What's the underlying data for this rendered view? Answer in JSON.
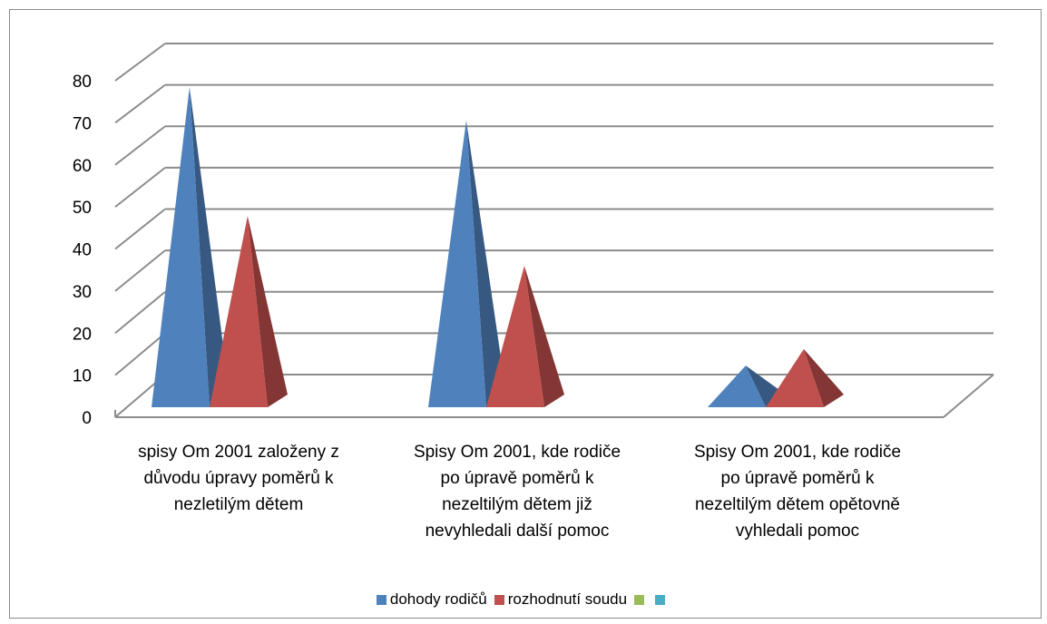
{
  "chart_data": {
    "type": "bar",
    "style": "3d-pyramid",
    "categories": [
      "spisy Om 2001 založeny z\ndůvodu úpravy poměrů k\nnezletilým dětem",
      "Spisy Om 2001, kde rodiče\npo úpravě poměrů k\nnezeltilým dětem již\nnevyhledali další pomoc",
      "Spisy Om  2001, kde rodiče\npo úpravě poměrů k\nnezeltilým dětem opětovně\nvyhledali pomoc"
    ],
    "series": [
      {
        "name": "dohody rodičů",
        "color": "#4f81bd",
        "values": [
          77,
          69,
          10
        ]
      },
      {
        "name": "rozhodnutí soudu",
        "color": "#c0504d",
        "values": [
          46,
          34,
          14
        ]
      },
      {
        "name": "",
        "color": "#9bbb59",
        "values": [
          0,
          0,
          0
        ]
      },
      {
        "name": "",
        "color": "#4bacc6",
        "values": [
          0,
          0,
          0
        ]
      }
    ],
    "y_ticks": [
      "0",
      "10",
      "20",
      "30",
      "40",
      "50",
      "60",
      "70",
      "80"
    ],
    "ylim": [
      0,
      80
    ],
    "grid": true,
    "legend_position": "bottom"
  }
}
